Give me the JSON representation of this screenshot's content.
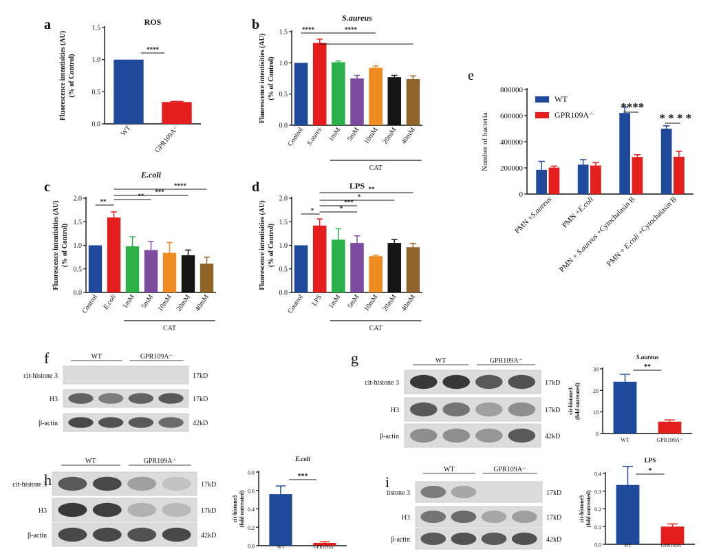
{
  "colors": {
    "blue": "#1f4a9c",
    "red": "#e41d1d",
    "green": "#2bb04a",
    "purple": "#7d4ba0",
    "orange": "#ef8b21",
    "black": "#151515",
    "brown": "#8f6428",
    "blot_bg": "#dcdcdc",
    "blot_band": "#2e2e2e"
  },
  "chart_data": [
    {
      "panel": "a",
      "type": "bar",
      "title": "ROS",
      "ylabel": "Fluorescence intentisities (AU)",
      "ylabel2": "(% of Control)",
      "ylim": [
        0,
        1.5
      ],
      "yticks": [
        "0.0",
        "0.5",
        "1.0",
        "1.5"
      ],
      "categories": [
        "WT",
        "GPR109A-/-"
      ],
      "values": [
        1.0,
        0.34
      ],
      "errors": [
        0,
        0.01
      ],
      "bar_colors": [
        "#1f4a9c",
        "#e41d1d"
      ],
      "significance": [
        {
          "from": 0,
          "to": 1,
          "label": "****"
        }
      ]
    },
    {
      "panel": "b",
      "type": "bar",
      "title": "S.aureus",
      "ylabel": "Fluorescence intentisities (AU)",
      "ylabel2": "(% of Control)",
      "ylim": [
        0,
        1.5
      ],
      "yticks": [
        "0.0",
        "0.5",
        "1.0",
        "1.5"
      ],
      "categories": [
        "Control",
        "S.aures",
        "1mM",
        "5mM",
        "10mM",
        "20mM",
        "40mM"
      ],
      "values": [
        1.0,
        1.32,
        1.01,
        0.75,
        0.92,
        0.77,
        0.74
      ],
      "errors": [
        0,
        0.06,
        0.02,
        0.05,
        0.03,
        0.03,
        0.05
      ],
      "bar_colors": [
        "#1f4a9c",
        "#e41d1d",
        "#2bb04a",
        "#7d4ba0",
        "#ef8b21",
        "#151515",
        "#8f6428"
      ],
      "group_label": "CAT",
      "significance": [
        {
          "from": 0,
          "to": 1,
          "label": "****"
        },
        {
          "from": 1,
          "to": 4,
          "label": "****"
        },
        {
          "from": 1,
          "to": 6,
          "label": ""
        }
      ]
    },
    {
      "panel": "c",
      "type": "bar",
      "title": "E.coli",
      "ylabel": "Fluorescence intentisities (AU)",
      "ylabel2": "(% of Control)",
      "ylim": [
        0,
        2.0
      ],
      "yticks": [
        "0.0",
        "0.5",
        "1.0",
        "1.5",
        "2.0"
      ],
      "categories": [
        "Control",
        "E.coli",
        "1mM",
        "5mM",
        "10mM",
        "20mM",
        "40mM"
      ],
      "values": [
        1.0,
        1.59,
        0.98,
        0.9,
        0.84,
        0.79,
        0.61
      ],
      "errors": [
        0,
        0.12,
        0.2,
        0.18,
        0.22,
        0.11,
        0.14
      ],
      "bar_colors": [
        "#1f4a9c",
        "#e41d1d",
        "#2bb04a",
        "#7d4ba0",
        "#ef8b21",
        "#151515",
        "#8f6428"
      ],
      "group_label": "CAT",
      "significance": [
        {
          "from": 0,
          "to": 1,
          "label": "**"
        },
        {
          "from": 1,
          "to": 3,
          "label": "**"
        },
        {
          "from": 1,
          "to": 5,
          "label": "***"
        },
        {
          "from": 1,
          "to": 6,
          "label": "****"
        }
      ]
    },
    {
      "panel": "d",
      "type": "bar",
      "title": "LPS",
      "ylabel": "Fluorescence intentisities (AU)",
      "ylabel2": "(% of Control)",
      "ylim": [
        0,
        2.0
      ],
      "yticks": [
        "0.0",
        "0.5",
        "1.0",
        "1.5",
        "2.0"
      ],
      "categories": [
        "Control",
        "LPS",
        "1mM",
        "5mM",
        "10mM",
        "20mM",
        "40mM"
      ],
      "values": [
        1.0,
        1.42,
        1.12,
        1.05,
        0.77,
        1.05,
        0.96
      ],
      "errors": [
        0,
        0.14,
        0.23,
        0.15,
        0.02,
        0.07,
        0.08
      ],
      "bar_colors": [
        "#1f4a9c",
        "#e41d1d",
        "#2bb04a",
        "#7d4ba0",
        "#ef8b21",
        "#151515",
        "#8f6428"
      ],
      "group_label": "CAT",
      "significance": [
        {
          "from": 0,
          "to": 1,
          "label": "*"
        },
        {
          "from": 1,
          "to": 3,
          "label": "*"
        },
        {
          "from": 1,
          "to": 3,
          "label": "***"
        },
        {
          "from": 1,
          "to": 5,
          "label": "*"
        },
        {
          "from": 1,
          "to": 6,
          "label": "**"
        }
      ]
    },
    {
      "panel": "e",
      "type": "bar",
      "ylabel": "Number of bacteria",
      "ylim": [
        0,
        800000
      ],
      "yticks": [
        "0",
        "200000",
        "400000",
        "600000",
        "800000"
      ],
      "categories": [
        "PMN +S.aureus",
        "PMN +E.coli",
        "PMN + S.aureus +Cytochalasin B",
        "PMN + E.coli +Cytochalasin B"
      ],
      "series": [
        {
          "name": "WT",
          "values": [
            185000,
            225000,
            620000,
            500000
          ],
          "errors": [
            65000,
            38000,
            45000,
            22000
          ],
          "color": "#1f4a9c"
        },
        {
          "name": "GPR109A-/-",
          "values": [
            202000,
            218000,
            283000,
            285000
          ],
          "errors": [
            12000,
            22000,
            18000,
            42000
          ],
          "color": "#e41d1d"
        }
      ],
      "significance": [
        {
          "group": 2,
          "label": "****"
        },
        {
          "group": 3,
          "label": "* * * *"
        }
      ]
    },
    {
      "panel": "g",
      "type": "bar",
      "title": "S.aureus",
      "ylabel": "cit-histone3",
      "ylabel2": "(fold untreated)",
      "ylim": [
        0,
        30
      ],
      "yticks": [
        "0",
        "10",
        "20",
        "30"
      ],
      "categories": [
        "WT",
        "GPR109A-/-"
      ],
      "values": [
        24.0,
        5.5
      ],
      "errors": [
        3.5,
        0.8
      ],
      "bar_colors": [
        "#1f4a9c",
        "#e41d1d"
      ],
      "significance": [
        {
          "from": 0,
          "to": 1,
          "label": "**"
        }
      ]
    },
    {
      "panel": "h",
      "type": "bar",
      "title": "E.coli",
      "ylabel": "cit-histone3",
      "ylabel2": "(fold untreated)",
      "ylim": [
        0,
        0.8
      ],
      "yticks": [
        "0.0",
        "0.2",
        "0.4",
        "0.6",
        "0.8"
      ],
      "categories": [
        "WT",
        "GPR109A-/-"
      ],
      "values": [
        0.56,
        0.03
      ],
      "errors": [
        0.09,
        0.012
      ],
      "bar_colors": [
        "#1f4a9c",
        "#e41d1d"
      ],
      "significance": [
        {
          "from": 0,
          "to": 1,
          "label": "***"
        }
      ]
    },
    {
      "panel": "i",
      "type": "bar",
      "title": "LPS",
      "ylabel": "cit-histone3",
      "ylabel2": "(fold untreated)",
      "ylim": [
        0,
        0.4
      ],
      "yticks": [
        "0.0",
        "0.1",
        "0.2",
        "0.3",
        "0.4"
      ],
      "categories": [
        "WT",
        "GPR109A-/-"
      ],
      "values": [
        0.335,
        0.1
      ],
      "errors": [
        0.105,
        0.015
      ],
      "bar_colors": [
        "#1f4a9c",
        "#e41d1d"
      ],
      "significance": [
        {
          "from": 0,
          "to": 1,
          "label": "*"
        }
      ]
    }
  ],
  "blots": [
    {
      "panel": "f",
      "group1": "WT",
      "group2": "GPR109A-/-",
      "rows": [
        {
          "label": "cit-histone 3",
          "kd": "17kD"
        },
        {
          "label": "H3",
          "kd": "17kD"
        },
        {
          "label": "β-actin",
          "kd": "42kD"
        }
      ]
    },
    {
      "panel": "g",
      "group1": "WT",
      "group2": "GPR109A-/-",
      "rows": [
        {
          "label": "cit-histone 3",
          "kd": "17kD"
        },
        {
          "label": "H3",
          "kd": "17kD"
        },
        {
          "label": "β-actin",
          "kd": "42kD"
        }
      ]
    },
    {
      "panel": "h",
      "group1": "WT",
      "group2": "GPR109A-/-",
      "rows": [
        {
          "label": "cit-histone 3",
          "kd": "17kD"
        },
        {
          "label": "H3",
          "kd": "17kD"
        },
        {
          "label": "β-actin",
          "kd": "42kD"
        }
      ]
    },
    {
      "panel": "i",
      "group1": "WT",
      "group2": "GPR109A-/-",
      "rows": [
        {
          "label": "iistone 3",
          "kd": "17kD"
        },
        {
          "label": "H3",
          "kd": "17kD"
        },
        {
          "label": "β-actin",
          "kd": "42kD"
        }
      ]
    }
  ]
}
